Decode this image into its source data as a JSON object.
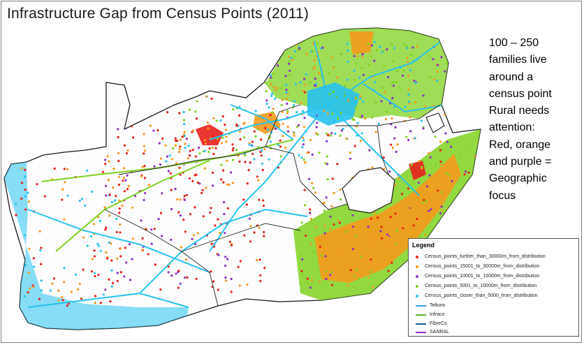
{
  "title": "Infrastructure Gap from Census Points (2011)",
  "callout_lines": [
    "100 – 250",
    "families  live",
    "around a",
    "census point",
    "Rural needs",
    "attention:",
    "Red, orange",
    "and purple =",
    "Geographic",
    "focus"
  ],
  "legend": {
    "title": "Legend",
    "points": [
      {
        "label": "Census_points_further_than_30000m_from_distribution",
        "color": "#e8201c"
      },
      {
        "label": "Census_points_15001_to_30000m_from_distribution",
        "color": "#f59a1c"
      },
      {
        "label": "Census_points_10001_to_15000m_from_distribution",
        "color": "#8e2fc4"
      },
      {
        "label": "Census_points_5001_to_10000m_from_distribution",
        "color": "#7fd21f"
      },
      {
        "label": "Census_points_closer_than_5000_from_distribution",
        "color": "#27c2ee"
      }
    ],
    "lines": [
      {
        "label": "Telkom",
        "color": "#3aa0d8"
      },
      {
        "label": "Infraco",
        "color": "#5cb02a"
      },
      {
        "label": "FibreCo",
        "color": "#1f5f8f"
      },
      {
        "label": "SANRAL",
        "color": "#8e2fc4"
      }
    ]
  },
  "colors": {
    "red": "#e8201c",
    "orange": "#f59a1c",
    "purple": "#8e2fc4",
    "green": "#7fd21f",
    "cyan": "#27c2ee",
    "border": "#1a1a1a"
  }
}
